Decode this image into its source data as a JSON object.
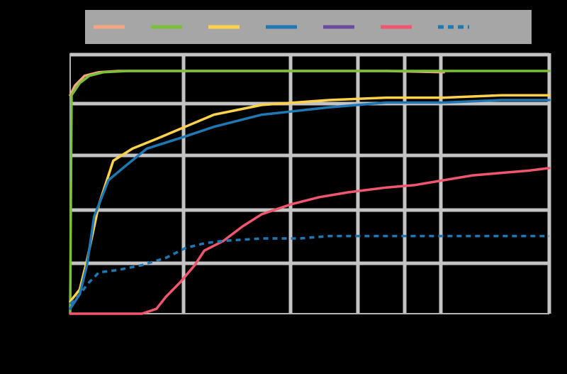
{
  "chart_data": {
    "type": "line",
    "title": "",
    "xlabel": "",
    "ylabel": "",
    "xlim": [
      0,
      1
    ],
    "ylim": [
      0,
      1
    ],
    "x_scale": "log",
    "grid": true,
    "legend": "top",
    "series": [
      {
        "color": "#f4a582",
        "dash": false,
        "points": [
          [
            0.0,
            0.9
          ],
          [
            0.01,
            0.94
          ],
          [
            0.03,
            0.98
          ],
          [
            0.06,
            0.995
          ],
          [
            0.1,
            1.0
          ],
          [
            0.3,
            1.0
          ],
          [
            0.54,
            1.0
          ],
          [
            0.66,
            1.0
          ],
          [
            0.78,
            0.995
          ]
        ]
      },
      {
        "color": "#7cbf3a",
        "dash": false,
        "points": [
          [
            0.0,
            0.0
          ],
          [
            0.003,
            0.9
          ],
          [
            0.02,
            0.95
          ],
          [
            0.04,
            0.98
          ],
          [
            0.07,
            0.995
          ],
          [
            0.12,
            1.0
          ],
          [
            0.3,
            1.0
          ],
          [
            0.54,
            1.0
          ],
          [
            0.78,
            1.0
          ],
          [
            1.0,
            1.0
          ]
        ]
      },
      {
        "color": "#ffd24a",
        "dash": false,
        "points": [
          [
            0.0,
            0.05
          ],
          [
            0.02,
            0.1
          ],
          [
            0.035,
            0.22
          ],
          [
            0.06,
            0.45
          ],
          [
            0.09,
            0.63
          ],
          [
            0.13,
            0.68
          ],
          [
            0.18,
            0.72
          ],
          [
            0.24,
            0.77
          ],
          [
            0.3,
            0.82
          ],
          [
            0.4,
            0.86
          ],
          [
            0.54,
            0.88
          ],
          [
            0.66,
            0.89
          ],
          [
            0.78,
            0.89
          ],
          [
            0.9,
            0.9
          ],
          [
            1.0,
            0.9
          ]
        ]
      },
      {
        "color": "#1f78b4",
        "dash": false,
        "points": [
          [
            0.0,
            0.02
          ],
          [
            0.02,
            0.08
          ],
          [
            0.035,
            0.2
          ],
          [
            0.05,
            0.4
          ],
          [
            0.08,
            0.55
          ],
          [
            0.11,
            0.6
          ],
          [
            0.16,
            0.68
          ],
          [
            0.24,
            0.73
          ],
          [
            0.3,
            0.77
          ],
          [
            0.4,
            0.82
          ],
          [
            0.54,
            0.85
          ],
          [
            0.66,
            0.87
          ],
          [
            0.78,
            0.87
          ],
          [
            0.9,
            0.88
          ],
          [
            1.0,
            0.88
          ]
        ]
      },
      {
        "color": "#6a4c9c",
        "dash": false,
        "points": []
      },
      {
        "color": "#f0566e",
        "dash": false,
        "points": [
          [
            0.0,
            0.0
          ],
          [
            0.08,
            0.0
          ],
          [
            0.15,
            0.0
          ],
          [
            0.18,
            0.02
          ],
          [
            0.2,
            0.07
          ],
          [
            0.23,
            0.13
          ],
          [
            0.26,
            0.2
          ],
          [
            0.28,
            0.26
          ],
          [
            0.32,
            0.3
          ],
          [
            0.36,
            0.36
          ],
          [
            0.4,
            0.41
          ],
          [
            0.46,
            0.45
          ],
          [
            0.52,
            0.48
          ],
          [
            0.58,
            0.5
          ],
          [
            0.62,
            0.51
          ],
          [
            0.66,
            0.52
          ],
          [
            0.72,
            0.53
          ],
          [
            0.78,
            0.55
          ],
          [
            0.84,
            0.57
          ],
          [
            0.9,
            0.58
          ],
          [
            0.96,
            0.59
          ],
          [
            1.0,
            0.6
          ]
        ]
      },
      {
        "color": "#1f78b4",
        "dash": true,
        "points": [
          [
            0.0,
            0.04
          ],
          [
            0.02,
            0.08
          ],
          [
            0.04,
            0.13
          ],
          [
            0.06,
            0.17
          ],
          [
            0.1,
            0.18
          ],
          [
            0.15,
            0.2
          ],
          [
            0.2,
            0.23
          ],
          [
            0.24,
            0.27
          ],
          [
            0.28,
            0.29
          ],
          [
            0.32,
            0.3
          ],
          [
            0.4,
            0.31
          ],
          [
            0.48,
            0.31
          ],
          [
            0.54,
            0.32
          ],
          [
            0.66,
            0.32
          ],
          [
            0.78,
            0.32
          ],
          [
            0.9,
            0.32
          ],
          [
            1.0,
            0.32
          ]
        ]
      }
    ],
    "tick_labels_x": [
      "",
      "",
      "",
      "",
      ""
    ],
    "tick_labels_y": [
      "",
      "",
      "",
      "",
      ""
    ]
  }
}
